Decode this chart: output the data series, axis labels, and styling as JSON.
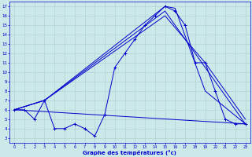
{
  "title": "Graphe des températures (°c)",
  "bg_color": "#cce8e8",
  "line_color": "#0000cc",
  "grid_color": "#aacccc",
  "xlim": [
    -0.5,
    23.5
  ],
  "ylim": [
    2.5,
    17.5
  ],
  "xticks": [
    0,
    1,
    2,
    3,
    4,
    5,
    6,
    7,
    8,
    9,
    10,
    11,
    12,
    13,
    14,
    15,
    16,
    17,
    18,
    19,
    20,
    21,
    22,
    23
  ],
  "yticks": [
    3,
    4,
    5,
    6,
    7,
    8,
    9,
    10,
    11,
    12,
    13,
    14,
    15,
    16,
    17
  ],
  "line_main": {
    "x": [
      0,
      1,
      2,
      3,
      4,
      5,
      6,
      7,
      8,
      9,
      10,
      11,
      12,
      13,
      14,
      15,
      16,
      17,
      18,
      19,
      20,
      21,
      22,
      23
    ],
    "y": [
      6,
      6,
      5,
      7,
      4,
      4,
      4.5,
      4,
      3.2,
      5.5,
      10.5,
      12,
      13.5,
      15,
      16,
      17,
      16.5,
      15,
      11,
      11,
      8,
      5,
      4.5,
      4.5
    ]
  },
  "line_flat": {
    "x": [
      0,
      23
    ],
    "y": [
      6,
      4.5
    ]
  },
  "line_top1": {
    "x": [
      0,
      3,
      15,
      16,
      19,
      23
    ],
    "y": [
      6,
      7,
      17,
      16.8,
      8,
      4.5
    ]
  },
  "line_top2": {
    "x": [
      0,
      3,
      15,
      16,
      19,
      23
    ],
    "y": [
      6,
      7,
      16.5,
      15,
      10.5,
      4.5
    ]
  },
  "line_top3": {
    "x": [
      0,
      3,
      15,
      19,
      23
    ],
    "y": [
      6,
      7,
      16,
      11,
      5
    ]
  }
}
